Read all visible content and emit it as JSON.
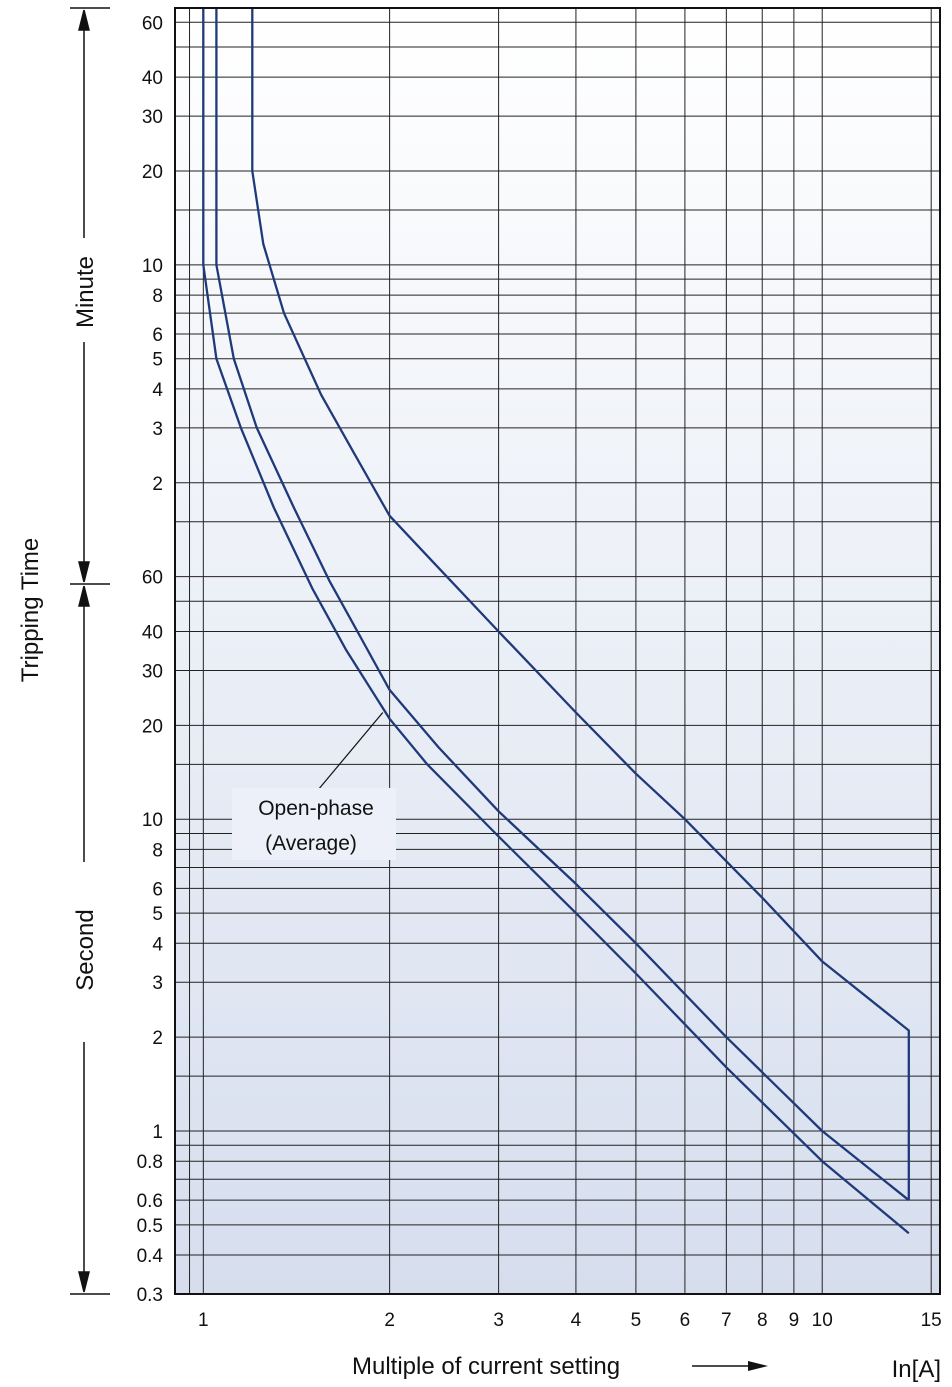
{
  "chart_data": {
    "type": "line",
    "x_scale": "log",
    "y_scale": "log",
    "xlim": [
      0.9,
      15.5
    ],
    "ylim_seconds": [
      0.3,
      4000
    ],
    "grid": true,
    "x_ticks": [
      {
        "value": 1,
        "label": "1"
      },
      {
        "value": 2,
        "label": "2"
      },
      {
        "value": 3,
        "label": "3"
      },
      {
        "value": 4,
        "label": "4"
      },
      {
        "value": 5,
        "label": "5"
      },
      {
        "value": 6,
        "label": "6"
      },
      {
        "value": 7,
        "label": "7"
      },
      {
        "value": 8,
        "label": "8"
      },
      {
        "value": 9,
        "label": "9"
      },
      {
        "value": 10,
        "label": "10"
      },
      {
        "value": 15,
        "label": "15"
      }
    ],
    "y_ticks_minutes": [
      {
        "value": 2,
        "label": "2"
      },
      {
        "value": 3,
        "label": "3"
      },
      {
        "value": 4,
        "label": "4"
      },
      {
        "value": 5,
        "label": "5"
      },
      {
        "value": 6,
        "label": "6"
      },
      {
        "value": 8,
        "label": "8"
      },
      {
        "value": 10,
        "label": "10"
      },
      {
        "value": 20,
        "label": "20"
      },
      {
        "value": 30,
        "label": "30"
      },
      {
        "value": 40,
        "label": "40"
      },
      {
        "value": 60,
        "label": "60"
      }
    ],
    "y_ticks_seconds": [
      {
        "value": 0.3,
        "label": "0.3"
      },
      {
        "value": 0.4,
        "label": "0.4"
      },
      {
        "value": 0.5,
        "label": "0.5"
      },
      {
        "value": 0.6,
        "label": "0.6"
      },
      {
        "value": 0.8,
        "label": "0.8"
      },
      {
        "value": 1,
        "label": "1"
      },
      {
        "value": 2,
        "label": "2"
      },
      {
        "value": 3,
        "label": "3"
      },
      {
        "value": 4,
        "label": "4"
      },
      {
        "value": 5,
        "label": "5"
      },
      {
        "value": 6,
        "label": "6"
      },
      {
        "value": 8,
        "label": "8"
      },
      {
        "value": 10,
        "label": "10"
      },
      {
        "value": 20,
        "label": "20"
      },
      {
        "value": 30,
        "label": "30"
      },
      {
        "value": 40,
        "label": "40"
      },
      {
        "value": 60,
        "label": "60"
      }
    ],
    "ylabel": "Tripping Time",
    "y_section_labels": {
      "minute": "Minute",
      "second": "Second"
    },
    "xlabel": "Multiple of current setting",
    "x_unit": "In[A]",
    "annotation": {
      "line1": "Open-phase",
      "line2": "(Average)",
      "x": 1.95,
      "y": 22
    },
    "x_gridlines": [
      0.95,
      1,
      2,
      3,
      4,
      5,
      6,
      7,
      8,
      9,
      10,
      15
    ],
    "y_gridlines_seconds": [
      0.3,
      0.4,
      0.5,
      0.6,
      0.7,
      0.8,
      0.9,
      1,
      1.5,
      2,
      3,
      4,
      5,
      6,
      7,
      8,
      9,
      10,
      15,
      20,
      30,
      40,
      50,
      60,
      90,
      120,
      180,
      240,
      300,
      360,
      420,
      480,
      540,
      600,
      900,
      1200,
      1800,
      2400,
      3000,
      3600
    ],
    "curve_color": "#1f3a7a",
    "series": [
      {
        "points": [
          [
            1.0,
            3990
          ],
          [
            1.0,
            600
          ],
          [
            1.05,
            300
          ],
          [
            1.15,
            180
          ],
          [
            1.3,
            100
          ],
          [
            1.5,
            55
          ],
          [
            1.7,
            35
          ],
          [
            2.0,
            21
          ],
          [
            2.3,
            15
          ],
          [
            3.0,
            8.8
          ],
          [
            4.0,
            5.0
          ],
          [
            5.0,
            3.2
          ],
          [
            7.0,
            1.6
          ],
          [
            10.0,
            0.8
          ],
          [
            13.8,
            0.47
          ]
        ]
      },
      {
        "points": [
          [
            1.05,
            3990
          ],
          [
            1.05,
            600
          ],
          [
            1.12,
            300
          ],
          [
            1.22,
            180
          ],
          [
            1.4,
            100
          ],
          [
            1.6,
            58
          ],
          [
            1.8,
            38
          ],
          [
            2.0,
            26
          ],
          [
            2.4,
            17
          ],
          [
            3.0,
            10.6
          ],
          [
            4.0,
            6.2
          ],
          [
            5.0,
            4.0
          ],
          [
            7.0,
            2.0
          ],
          [
            10.0,
            1.0
          ],
          [
            13.8,
            0.6
          ]
        ]
      },
      {
        "points": [
          [
            1.2,
            3990
          ],
          [
            1.2,
            1200
          ],
          [
            1.25,
            700
          ],
          [
            1.35,
            420
          ],
          [
            1.55,
            230
          ],
          [
            1.75,
            150
          ],
          [
            2.0,
            94
          ],
          [
            2.3,
            70
          ],
          [
            3.0,
            40
          ],
          [
            4.0,
            22
          ],
          [
            5.0,
            14
          ],
          [
            6.0,
            10
          ],
          [
            8.0,
            5.6
          ],
          [
            10.0,
            3.5
          ],
          [
            13.8,
            2.1
          ],
          [
            13.8,
            0.6
          ]
        ]
      }
    ]
  }
}
